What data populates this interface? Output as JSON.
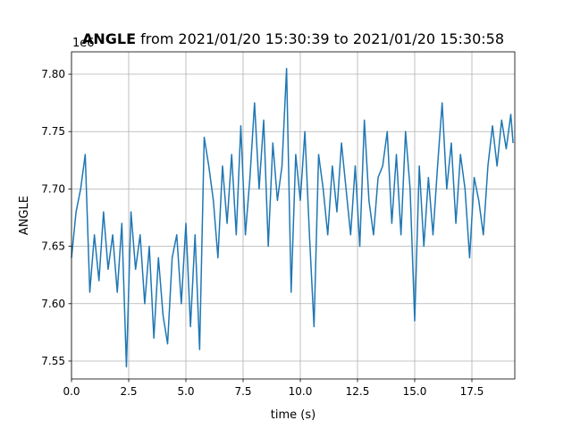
{
  "chart_data": {
    "type": "line",
    "title_bold": "ANGLE",
    "title": "from 2021/01/20 15:30:39 to 2021/01/20 15:30:58",
    "offset_label": "1e6",
    "xlabel": "time (s)",
    "ylabel": "ANGLE",
    "grid": true,
    "xlim": [
      0,
      19.375
    ],
    "ylim": [
      7.5344,
      7.8195
    ],
    "xticks": [
      {
        "value": 0,
        "label": "0.0"
      },
      2.5,
      {
        "value": 5,
        "label": "5.0"
      },
      7.5,
      {
        "value": 10,
        "label": "10.0"
      },
      12.5,
      {
        "value": 15,
        "label": "15.0"
      },
      17.5
    ],
    "yticks": [
      7.55,
      {
        "value": 7.6,
        "label": "7.60"
      },
      7.65,
      {
        "value": 7.7,
        "label": "7.70"
      },
      7.75,
      {
        "value": 7.8,
        "label": "7.80"
      }
    ],
    "x": [
      0,
      0.2,
      0.4,
      0.6,
      0.8,
      1,
      1.2,
      1.4,
      1.6,
      1.8,
      2,
      2.2,
      2.4,
      2.6,
      2.8,
      3,
      3.2,
      3.4,
      3.6,
      3.8,
      4,
      4.2,
      4.4,
      4.6,
      4.8,
      5,
      5.2,
      5.4,
      5.6,
      5.8,
      6,
      6.2,
      6.4,
      6.6,
      6.8,
      7,
      7.2,
      7.4,
      7.6,
      7.8,
      8,
      8.2,
      8.4,
      8.6,
      8.8,
      9,
      9.2,
      9.4,
      9.6,
      9.8,
      10,
      10.2,
      10.4,
      10.6,
      10.8,
      11,
      11.2,
      11.4,
      11.6,
      11.8,
      12,
      12.2,
      12.4,
      12.6,
      12.8,
      13,
      13.2,
      13.4,
      13.6,
      13.8,
      14,
      14.2,
      14.4,
      14.6,
      14.8,
      15,
      15.2,
      15.4,
      15.6,
      15.8,
      16,
      16.2,
      16.4,
      16.6,
      16.8,
      17,
      17.2,
      17.4,
      17.6,
      17.8,
      18,
      18.2,
      18.4,
      18.6,
      18.8,
      19,
      19.2,
      19.3
    ],
    "series": [
      {
        "color": "#1f77b4",
        "values": [
          7.64,
          7.68,
          7.7,
          7.73,
          7.61,
          7.66,
          7.62,
          7.68,
          7.63,
          7.66,
          7.61,
          7.67,
          7.545,
          7.68,
          7.63,
          7.66,
          7.6,
          7.65,
          7.57,
          7.64,
          7.59,
          7.565,
          7.64,
          7.66,
          7.6,
          7.67,
          7.58,
          7.66,
          7.56,
          7.745,
          7.72,
          7.69,
          7.64,
          7.72,
          7.67,
          7.73,
          7.66,
          7.755,
          7.66,
          7.71,
          7.775,
          7.7,
          7.76,
          7.65,
          7.74,
          7.69,
          7.72,
          7.805,
          7.61,
          7.73,
          7.69,
          7.75,
          7.66,
          7.58,
          7.73,
          7.7,
          7.66,
          7.72,
          7.68,
          7.74,
          7.7,
          7.66,
          7.72,
          7.65,
          7.76,
          7.69,
          7.66,
          7.71,
          7.72,
          7.75,
          7.67,
          7.73,
          7.66,
          7.75,
          7.7,
          7.585,
          7.72,
          7.65,
          7.71,
          7.66,
          7.72,
          7.775,
          7.7,
          7.74,
          7.67,
          7.73,
          7.7,
          7.64,
          7.71,
          7.69,
          7.66,
          7.72,
          7.755,
          7.72,
          7.76,
          7.735,
          7.765,
          7.74
        ]
      }
    ]
  }
}
